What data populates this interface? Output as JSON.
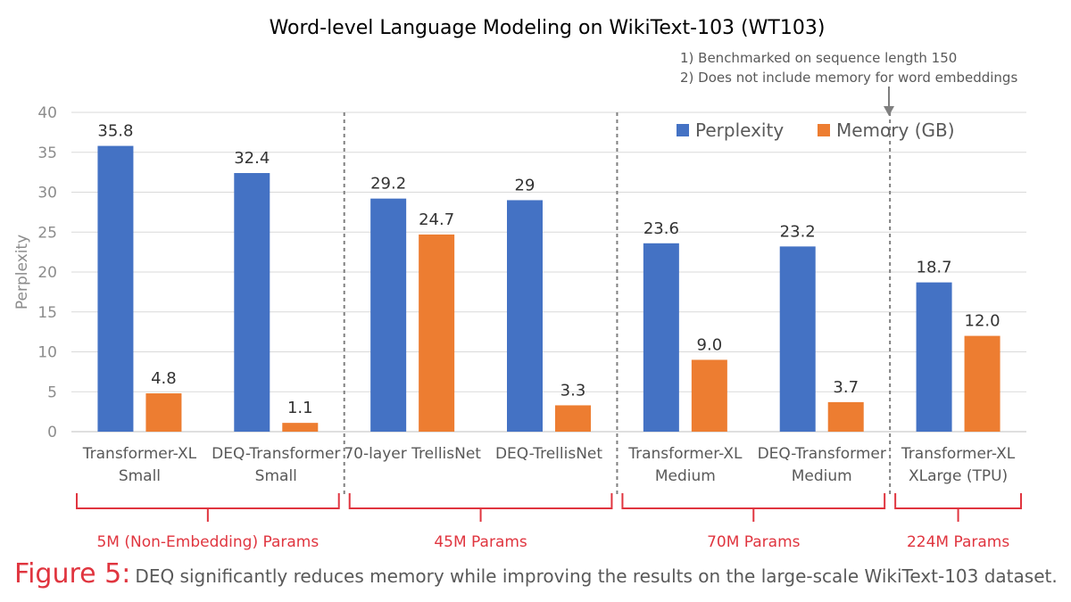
{
  "chart_data": {
    "type": "bar",
    "title": "Word-level Language Modeling on WikiText-103 (WT103)",
    "ylabel": "Perplexity",
    "xlabel": "",
    "ylim": [
      0,
      40
    ],
    "yticks": [
      0,
      5,
      10,
      15,
      20,
      25,
      30,
      35,
      40
    ],
    "grid": true,
    "legend_position": "top-right",
    "categories": [
      [
        "Transformer-XL",
        "Small"
      ],
      [
        "DEQ-Transformer",
        "Small"
      ],
      [
        "70-layer TrellisNet"
      ],
      [
        "DEQ-TrellisNet"
      ],
      [
        "Transformer-XL",
        "Medium"
      ],
      [
        "DEQ-Transformer",
        "Medium"
      ],
      [
        "Transformer-XL",
        "XLarge (TPU)"
      ]
    ],
    "series": [
      {
        "name": "Perplexity",
        "color": "#4472c4",
        "values": [
          35.8,
          32.4,
          29.2,
          29,
          23.6,
          23.2,
          18.7
        ],
        "labels": [
          "35.8",
          "32.4",
          "29.2",
          "29",
          "23.6",
          "23.2",
          "18.7"
        ]
      },
      {
        "name": "Memory (GB)",
        "color": "#ed7d31",
        "values": [
          4.8,
          1.1,
          24.7,
          3.3,
          9.0,
          3.7,
          12.0
        ],
        "labels": [
          "4.8",
          "1.1",
          "24.7",
          "3.3",
          "9.0",
          "3.7",
          "12.0"
        ]
      }
    ],
    "notes": [
      "1) Benchmarked on sequence length 150",
      "2) Does not include memory for word embeddings"
    ],
    "groups": [
      {
        "label": "5M (Non-Embedding) Params",
        "start": 0,
        "end": 1
      },
      {
        "label": "45M Params",
        "start": 2,
        "end": 3
      },
      {
        "label": "70M Params",
        "start": 4,
        "end": 5
      },
      {
        "label": "224M Params",
        "start": 6,
        "end": 6
      }
    ],
    "group_color": "#e0353f"
  },
  "caption": {
    "figure_label": "Figure 5:",
    "text": "DEQ significantly reduces memory while improving the results on the large-scale WikiText-103 dataset."
  }
}
